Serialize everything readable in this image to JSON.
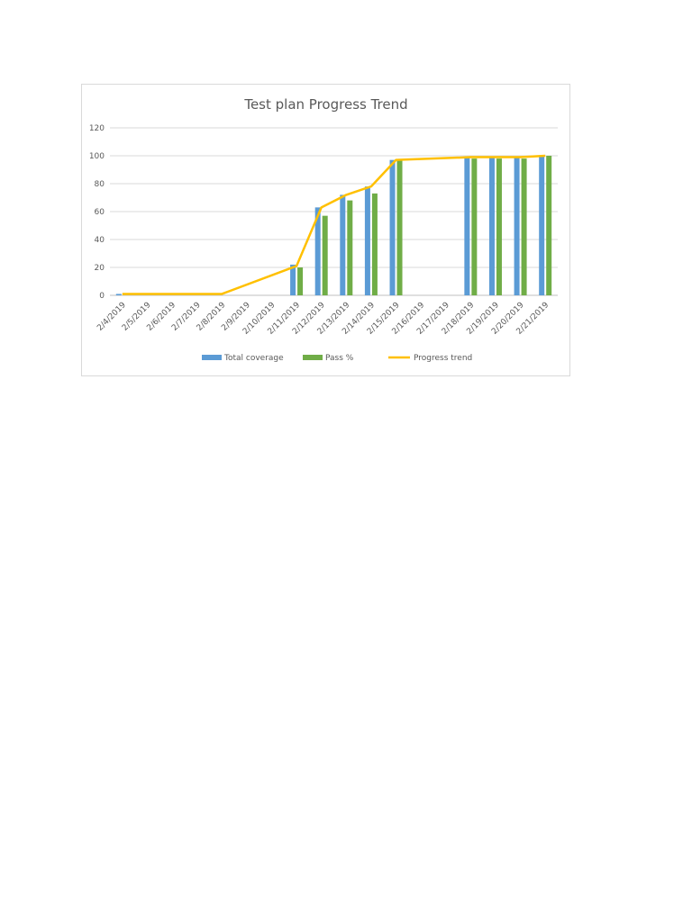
{
  "chart_data": {
    "type": "bar",
    "title": "Test plan Progress Trend",
    "xlabel": "",
    "ylabel": "",
    "ylim": [
      0,
      120
    ],
    "yticks": [
      0,
      20,
      40,
      60,
      80,
      100,
      120
    ],
    "grid": true,
    "legend_position": "bottom",
    "categories": [
      "2/4/2019",
      "2/5/2019",
      "2/6/2019",
      "2/7/2019",
      "2/8/2019",
      "2/9/2019",
      "2/10/2019",
      "2/11/2019",
      "2/12/2019",
      "2/13/2019",
      "2/14/2019",
      "2/15/2019",
      "2/16/2019",
      "2/17/2019",
      "2/18/2019",
      "2/19/2019",
      "2/20/2019",
      "2/21/2019"
    ],
    "series": [
      {
        "name": "Total coverage",
        "kind": "bar",
        "color": "#5b9bd5",
        "values": [
          1,
          null,
          null,
          null,
          null,
          null,
          null,
          22,
          63,
          72,
          78,
          97,
          null,
          null,
          99,
          99,
          99,
          100
        ]
      },
      {
        "name": "Pass %",
        "kind": "bar",
        "color": "#70ad47",
        "values": [
          null,
          null,
          null,
          null,
          null,
          null,
          null,
          20,
          57,
          68,
          73,
          97,
          null,
          null,
          98,
          98,
          98,
          100
        ]
      },
      {
        "name": "Progress trend",
        "kind": "line",
        "color": "#ffc000",
        "values": [
          1,
          1,
          1,
          1,
          1,
          null,
          null,
          21,
          63,
          72,
          78,
          97,
          null,
          null,
          99,
          99,
          99,
          100
        ]
      }
    ]
  }
}
